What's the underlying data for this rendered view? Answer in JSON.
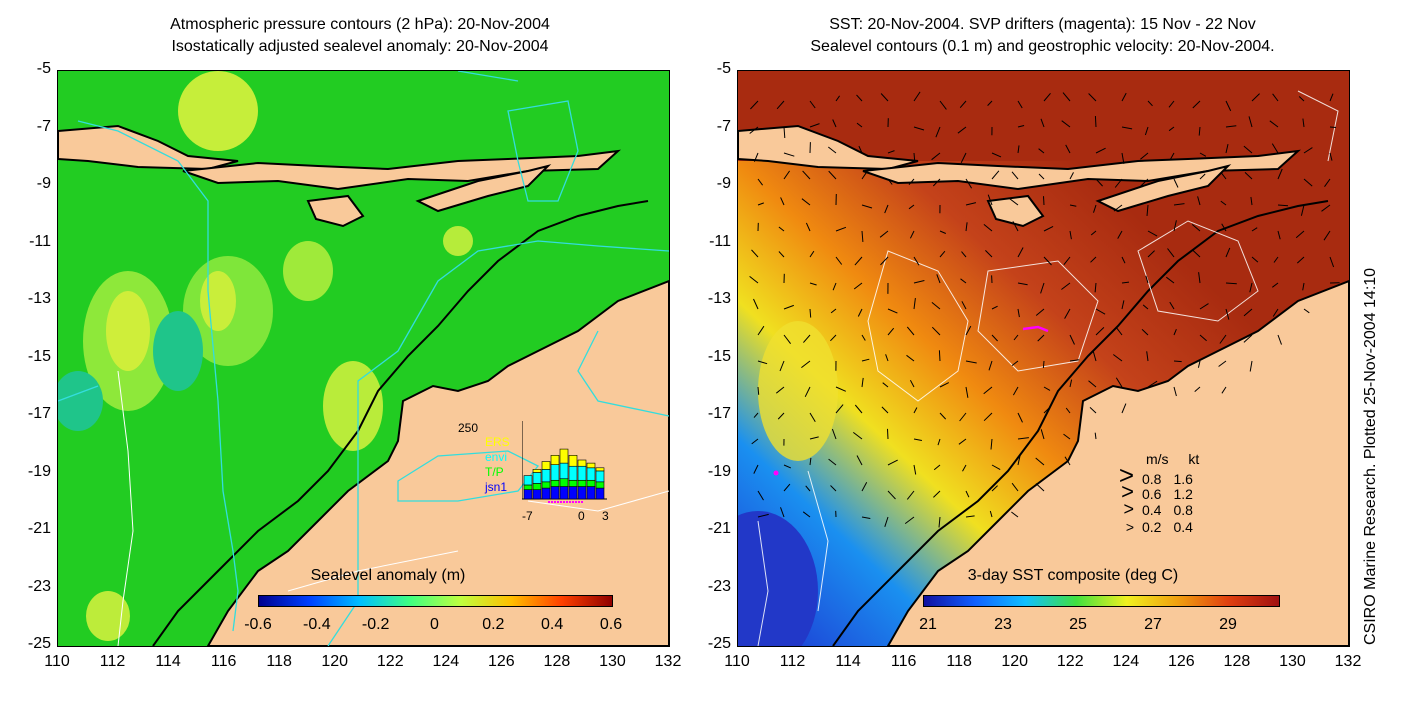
{
  "left_panel": {
    "title_line1": "Atmospheric pressure contours (2 hPa): 20-Nov-2004",
    "title_line2": "Isostatically adjusted sealevel anomaly: 20-Nov-2004",
    "colorbar_label": "Sealevel anomaly (m)",
    "colorbar_ticks": [
      "-0.6",
      "-0.4",
      "-0.2",
      "0",
      "0.2",
      "0.4",
      "0.6"
    ],
    "inset": {
      "ymax_label": "250",
      "sources": [
        "ERS",
        "envi",
        "T/P",
        "jsn1"
      ],
      "source_colors": [
        "#ffff00",
        "#00ffff",
        "#00ff00",
        "#0000ff"
      ],
      "x_labels": [
        "-7",
        "0",
        "3"
      ],
      "bars": [
        {
          "ERS": 0,
          "envi": 30,
          "TP": 15,
          "jsn1": 30
        },
        {
          "ERS": 10,
          "envi": 35,
          "TP": 20,
          "jsn1": 30
        },
        {
          "ERS": 25,
          "envi": 40,
          "TP": 20,
          "jsn1": 35
        },
        {
          "ERS": 30,
          "envi": 50,
          "TP": 20,
          "jsn1": 40
        },
        {
          "ERS": 45,
          "envi": 50,
          "TP": 25,
          "jsn1": 40
        },
        {
          "ERS": 35,
          "envi": 45,
          "TP": 20,
          "jsn1": 40
        },
        {
          "ERS": 20,
          "envi": 45,
          "TP": 20,
          "jsn1": 40
        },
        {
          "ERS": 15,
          "envi": 40,
          "TP": 20,
          "jsn1": 40
        },
        {
          "ERS": 10,
          "envi": 35,
          "TP": 20,
          "jsn1": 35
        }
      ]
    }
  },
  "right_panel": {
    "title_line1": "SST: 20-Nov-2004. SVP drifters (magenta): 15 Nov - 22 Nov",
    "title_line2": "Sealevel contours (0.1 m) and geostrophic velocity: 20-Nov-2004.",
    "colorbar_label": "3-day SST composite (deg C)",
    "colorbar_ticks": [
      "21",
      "23",
      "25",
      "27",
      "29"
    ],
    "velocity_legend": {
      "header_ms": "m/s",
      "header_kt": "kt",
      "rows": [
        {
          "ms": "0.8",
          "kt": "1.6"
        },
        {
          "ms": "0.6",
          "kt": "1.2"
        },
        {
          "ms": "0.4",
          "kt": "0.8"
        },
        {
          "ms": "0.2",
          "kt": "0.4"
        }
      ]
    }
  },
  "axes": {
    "y_ticks": [
      "-5",
      "-7",
      "-9",
      "-11",
      "-13",
      "-15",
      "-17",
      "-19",
      "-21",
      "-23",
      "-25"
    ],
    "x_ticks": [
      "110",
      "112",
      "114",
      "116",
      "118",
      "120",
      "122",
      "124",
      "126",
      "128",
      "130",
      "132"
    ]
  },
  "side_note": "CSIRO Marine Research. Plotted 25-Nov-2004 14:10",
  "colors": {
    "land": "#f9c99a",
    "ocean_left": "#22cc22",
    "ocean_right": "#a82b10"
  }
}
